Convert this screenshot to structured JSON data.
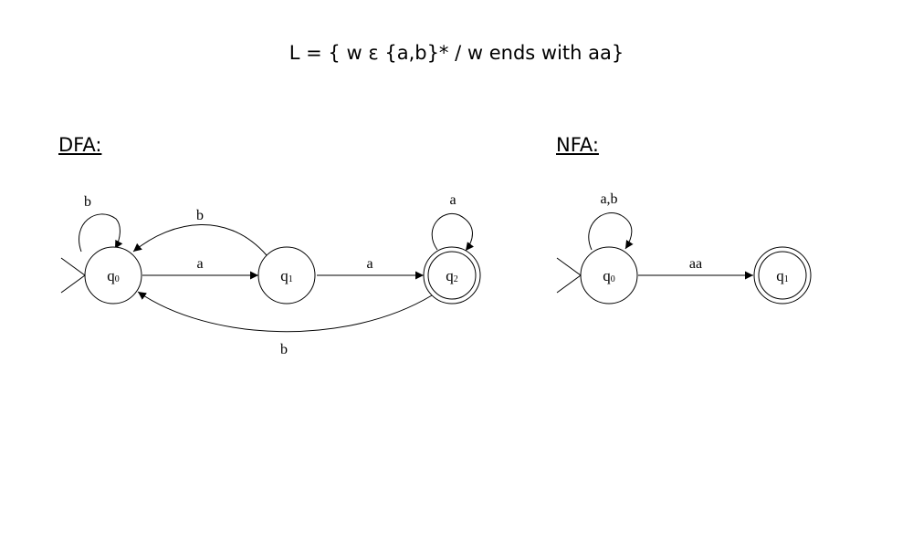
{
  "title": "L = { w ε {a,b}* / w ends with aa}",
  "dfa": {
    "heading": "DFA:",
    "states": [
      {
        "base": "q",
        "sub": "0",
        "accepting": false,
        "start": true
      },
      {
        "base": "q",
        "sub": "1",
        "accepting": false,
        "start": false
      },
      {
        "base": "q",
        "sub": "2",
        "accepting": true,
        "start": false
      }
    ],
    "transitions": [
      {
        "from": "q0",
        "to": "q0",
        "label": "b"
      },
      {
        "from": "q0",
        "to": "q1",
        "label": "a"
      },
      {
        "from": "q1",
        "to": "q0",
        "label": "b"
      },
      {
        "from": "q1",
        "to": "q2",
        "label": "a"
      },
      {
        "from": "q2",
        "to": "q2",
        "label": "a"
      },
      {
        "from": "q2",
        "to": "q0",
        "label": "b"
      }
    ]
  },
  "nfa": {
    "heading": "NFA:",
    "states": [
      {
        "base": "q",
        "sub": "0",
        "accepting": false,
        "start": true
      },
      {
        "base": "q",
        "sub": "1",
        "accepting": true,
        "start": false
      }
    ],
    "transitions": [
      {
        "from": "q0",
        "to": "q0",
        "label": "a,b"
      },
      {
        "from": "q0",
        "to": "q1",
        "label": "aa"
      }
    ]
  }
}
